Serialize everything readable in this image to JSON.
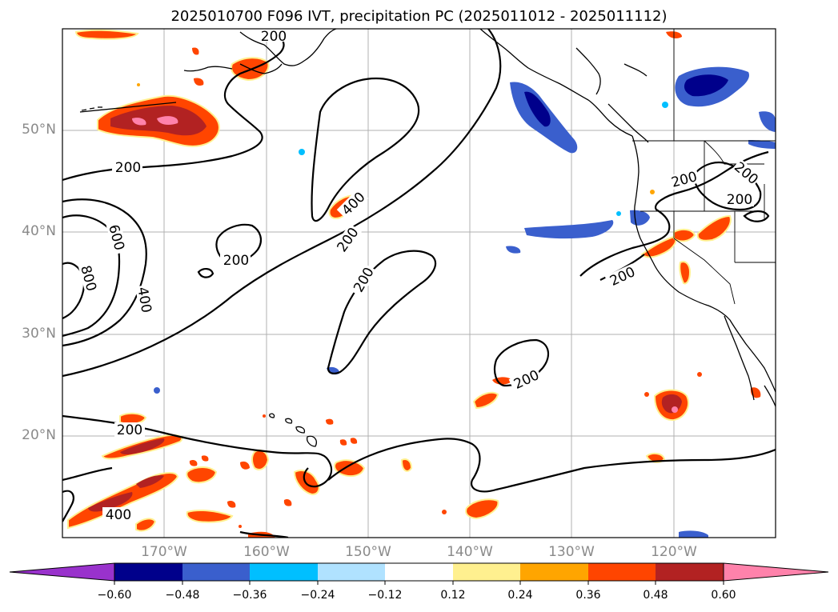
{
  "title": "2025010700 F096 IVT, precipitation PC (2025011012 - 2025011112)",
  "map": {
    "lat_ticks": [
      "50°N",
      "40°N",
      "30°N",
      "20°N"
    ],
    "lon_ticks": [
      "170°W",
      "160°W",
      "150°W",
      "140°W",
      "130°W",
      "120°W"
    ],
    "contour_labels": [
      "200",
      "200",
      "200",
      "200",
      "200",
      "200",
      "200",
      "200",
      "200",
      "200",
      "400",
      "400",
      "400",
      "600",
      "800"
    ]
  },
  "colorbar": {
    "ticks": [
      "−0.60",
      "−0.48",
      "−0.36",
      "−0.24",
      "−0.12",
      "0.12",
      "0.24",
      "0.36",
      "0.48",
      "0.60"
    ],
    "colors": [
      "#9932cc",
      "#00008b",
      "#3a5fcd",
      "#00bfff",
      "#b0e2ff",
      "#ffffff",
      "#fff08f",
      "#ffa500",
      "#ff4500",
      "#b22222",
      "#ff82ab"
    ]
  },
  "colors": {
    "neg_strong": "#00008b",
    "neg_mid": "#3a5fcd",
    "neg_light": "#00bfff",
    "pos_light": "#fff08f",
    "pos_mid": "#ffa500",
    "pos_strong": "#ff4500",
    "pos_darker": "#b22222",
    "pos_max": "#ff82ab"
  }
}
